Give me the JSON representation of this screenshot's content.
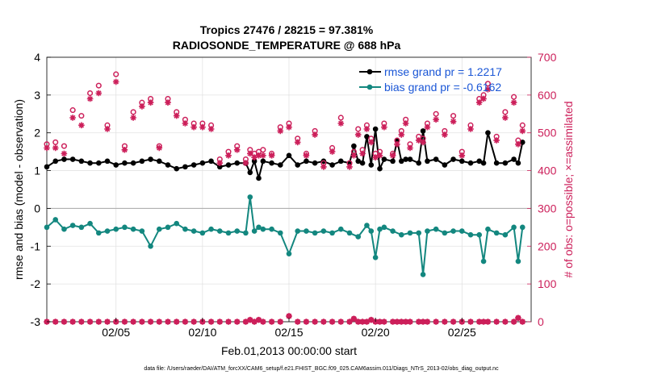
{
  "colors": {
    "rmse": "#000000",
    "bias": "#13877f",
    "obs": "#cc1f5a",
    "legend_text": "#1a56d6",
    "grid": "#e2e2e2",
    "zero": "#b0b0b0"
  },
  "chart_data": {
    "type": "line",
    "title": "Tropics 27476 / 28215 = 97.381%",
    "subtitle": "RADIOSONDE_TEMPERATURE @ 688 hPa",
    "xlabel": "Feb.01,2013 00:00:00 start",
    "ylabel": "rmse and bias (model - observation)",
    "y2label": "# of obs: o=possible; ×=assimilated",
    "footer": "data file: /Users/raeder/DAI/ATM_forcXX/CAM6_setup/f.e21.FHIST_BGC.f09_025.CAM6assim.011/Diags_NTrS_2013-02/obs_diag_output.nc",
    "x_range": [
      1.0,
      29.0
    ],
    "ylim": [
      -3,
      4
    ],
    "y2lim": [
      0,
      700
    ],
    "x_ticks": [
      5,
      10,
      15,
      20,
      25
    ],
    "x_tick_labels": [
      "02/05",
      "02/10",
      "02/15",
      "02/20",
      "02/25"
    ],
    "y_ticks": [
      -3,
      -2,
      -1,
      0,
      1,
      2,
      3,
      4
    ],
    "y_tick_labels": [
      "-3",
      "-2",
      "-1",
      "0",
      "1",
      "2",
      "3",
      "4"
    ],
    "y2_ticks": [
      0,
      100,
      200,
      300,
      400,
      500,
      600,
      700
    ],
    "y2_tick_labels": [
      "0",
      "100",
      "200",
      "300",
      "400",
      "500",
      "600",
      "700"
    ],
    "legend": [
      "rmse grand pr = 1.2217",
      "bias grand pr = -0.6162"
    ],
    "series": [
      {
        "name": "rmse",
        "x": [
          1.0,
          1.5,
          2.0,
          2.5,
          3.0,
          3.5,
          4.0,
          4.5,
          5.0,
          5.5,
          6.0,
          6.5,
          7.0,
          7.5,
          8.0,
          8.5,
          9.0,
          9.5,
          10.0,
          10.5,
          11.0,
          11.5,
          12.0,
          12.5,
          12.75,
          13.0,
          13.25,
          13.5,
          14.0,
          14.5,
          15.0,
          15.5,
          16.0,
          16.5,
          17.0,
          17.5,
          18.0,
          18.5,
          18.75,
          19.0,
          19.25,
          19.5,
          19.75,
          20.0,
          20.25,
          20.5,
          21.0,
          21.25,
          21.5,
          21.75,
          22.0,
          22.5,
          22.75,
          23.0,
          23.5,
          24.0,
          24.5,
          25.0,
          25.5,
          26.0,
          26.25,
          26.5,
          27.0,
          27.5,
          28.0,
          28.25,
          28.5
        ],
        "y": [
          1.1,
          1.25,
          1.3,
          1.3,
          1.25,
          1.2,
          1.2,
          1.25,
          1.15,
          1.2,
          1.2,
          1.25,
          1.3,
          1.25,
          1.15,
          1.05,
          1.1,
          1.15,
          1.2,
          1.25,
          1.1,
          1.15,
          1.2,
          1.2,
          0.95,
          1.25,
          0.8,
          1.25,
          1.2,
          1.15,
          1.4,
          1.15,
          1.25,
          1.2,
          1.25,
          1.15,
          1.25,
          1.2,
          1.65,
          1.25,
          1.2,
          1.9,
          1.15,
          2.1,
          1.05,
          1.3,
          1.25,
          1.8,
          1.25,
          1.3,
          1.3,
          1.2,
          2.05,
          1.25,
          1.3,
          1.15,
          1.3,
          1.25,
          1.2,
          1.25,
          1.2,
          2.0,
          1.2,
          1.2,
          1.3,
          1.2,
          1.75
        ]
      },
      {
        "name": "bias",
        "x": [
          1.0,
          1.5,
          2.0,
          2.5,
          3.0,
          3.5,
          4.0,
          4.5,
          5.0,
          5.5,
          6.0,
          6.5,
          7.0,
          7.5,
          8.0,
          8.5,
          9.0,
          9.5,
          10.0,
          10.5,
          11.0,
          11.5,
          12.0,
          12.5,
          12.75,
          13.0,
          13.25,
          13.5,
          14.0,
          14.5,
          15.0,
          15.5,
          16.0,
          16.5,
          17.0,
          17.5,
          18.0,
          18.5,
          19.0,
          19.5,
          19.75,
          20.0,
          20.25,
          20.5,
          21.0,
          21.5,
          22.0,
          22.5,
          22.75,
          23.0,
          23.5,
          24.0,
          24.5,
          25.0,
          25.5,
          26.0,
          26.25,
          26.5,
          27.0,
          27.5,
          28.0,
          28.25,
          28.5
        ],
        "y": [
          -0.5,
          -0.3,
          -0.55,
          -0.45,
          -0.5,
          -0.4,
          -0.65,
          -0.6,
          -0.55,
          -0.5,
          -0.55,
          -0.6,
          -1.0,
          -0.55,
          -0.5,
          -0.4,
          -0.55,
          -0.6,
          -0.65,
          -0.55,
          -0.6,
          -0.65,
          -0.6,
          -0.65,
          0.3,
          -0.6,
          -0.5,
          -0.55,
          -0.55,
          -0.65,
          -1.2,
          -0.6,
          -0.6,
          -0.65,
          -0.6,
          -0.65,
          -0.55,
          -0.65,
          -0.75,
          -0.45,
          -0.6,
          -1.3,
          -0.55,
          -0.5,
          -0.6,
          -0.7,
          -0.65,
          -0.65,
          -1.75,
          -0.6,
          -0.55,
          -0.65,
          -0.6,
          -0.6,
          -0.7,
          -0.7,
          -1.4,
          -0.55,
          -0.65,
          -0.7,
          -0.5,
          -1.4,
          -0.5
        ]
      },
      {
        "name": "obs_possible",
        "axis": "right",
        "x": [
          1.0,
          1.5,
          2.0,
          2.5,
          3.0,
          3.5,
          4.0,
          4.5,
          5.0,
          5.5,
          6.0,
          6.5,
          7.0,
          7.5,
          8.0,
          8.5,
          9.0,
          9.5,
          10.0,
          10.5,
          11.0,
          11.5,
          12.0,
          12.5,
          12.75,
          13.0,
          13.25,
          13.5,
          14.0,
          14.5,
          15.0,
          15.5,
          16.0,
          16.5,
          17.0,
          17.5,
          18.0,
          18.5,
          18.75,
          19.0,
          19.25,
          19.5,
          19.75,
          20.0,
          20.25,
          20.5,
          21.0,
          21.25,
          21.5,
          21.75,
          22.0,
          22.5,
          22.75,
          23.0,
          23.5,
          24.0,
          24.5,
          25.0,
          25.5,
          26.0,
          26.25,
          26.5,
          27.0,
          27.5,
          28.0,
          28.25,
          28.5
        ],
        "y": [
          470,
          475,
          465,
          560,
          545,
          605,
          625,
          520,
          655,
          465,
          555,
          580,
          590,
          465,
          590,
          555,
          535,
          525,
          525,
          520,
          430,
          450,
          465,
          430,
          455,
          445,
          450,
          455,
          445,
          515,
          525,
          485,
          445,
          505,
          420,
          460,
          540,
          420,
          450,
          510,
          455,
          520,
          485,
          445,
          450,
          525,
          445,
          480,
          505,
          535,
          470,
          490,
          485,
          525,
          550,
          505,
          545,
          450,
          520,
          590,
          600,
          630,
          490,
          555,
          595,
          480,
          520
        ]
      },
      {
        "name": "obs_assimilated",
        "axis": "right",
        "x": [
          1.0,
          1.5,
          2.0,
          2.5,
          3.0,
          3.5,
          4.0,
          4.5,
          5.0,
          5.5,
          6.0,
          6.5,
          7.0,
          7.5,
          8.0,
          8.5,
          9.0,
          9.5,
          10.0,
          10.5,
          11.0,
          11.5,
          12.0,
          12.5,
          12.75,
          13.0,
          13.25,
          13.5,
          14.0,
          14.5,
          15.0,
          15.5,
          16.0,
          16.5,
          17.0,
          17.5,
          18.0,
          18.5,
          18.75,
          19.0,
          19.25,
          19.5,
          19.75,
          20.0,
          20.25,
          20.5,
          21.0,
          21.25,
          21.5,
          21.75,
          22.0,
          22.5,
          22.75,
          23.0,
          23.5,
          24.0,
          24.5,
          25.0,
          25.5,
          26.0,
          26.25,
          26.5,
          27.0,
          27.5,
          28.0,
          28.25,
          28.5
        ],
        "y": [
          460,
          460,
          445,
          540,
          520,
          590,
          605,
          510,
          635,
          455,
          540,
          570,
          580,
          460,
          580,
          545,
          525,
          515,
          515,
          510,
          420,
          440,
          455,
          420,
          445,
          435,
          440,
          440,
          440,
          505,
          515,
          475,
          440,
          495,
          410,
          450,
          525,
          410,
          440,
          495,
          445,
          510,
          475,
          435,
          440,
          515,
          440,
          470,
          495,
          525,
          460,
          480,
          475,
          515,
          535,
          495,
          530,
          440,
          510,
          580,
          590,
          615,
          480,
          540,
          580,
          470,
          505
        ]
      },
      {
        "name": "obs_bottom_possible",
        "axis": "right",
        "x": [
          1.0,
          1.5,
          2.0,
          2.5,
          3.0,
          3.5,
          4.0,
          4.5,
          5.0,
          5.5,
          6.0,
          6.5,
          7.0,
          7.5,
          8.0,
          8.5,
          9.0,
          9.5,
          10.0,
          10.5,
          11.0,
          11.5,
          12.0,
          12.5,
          12.75,
          13.0,
          13.25,
          13.5,
          14.0,
          14.5,
          15.0,
          15.5,
          16.0,
          16.5,
          17.0,
          17.5,
          18.0,
          18.5,
          18.75,
          19.0,
          19.25,
          19.5,
          19.75,
          20.0,
          20.25,
          20.5,
          21.0,
          21.25,
          21.5,
          21.75,
          22.0,
          22.5,
          22.75,
          23.0,
          23.5,
          24.0,
          24.5,
          25.0,
          25.5,
          26.0,
          26.25,
          26.5,
          27.0,
          27.5,
          28.0,
          28.25,
          28.5
        ],
        "y": [
          0,
          0,
          0,
          0,
          0,
          0,
          0,
          0,
          0,
          0,
          0,
          0,
          0,
          0,
          0,
          0,
          0,
          0,
          0,
          0,
          0,
          0,
          0,
          0,
          5,
          0,
          5,
          0,
          0,
          0,
          15,
          0,
          0,
          0,
          0,
          0,
          0,
          0,
          8,
          0,
          0,
          0,
          5,
          0,
          0,
          0,
          0,
          0,
          0,
          0,
          0,
          0,
          0,
          0,
          0,
          0,
          0,
          0,
          0,
          0,
          0,
          0,
          0,
          0,
          0,
          10,
          0
        ]
      }
    ]
  }
}
